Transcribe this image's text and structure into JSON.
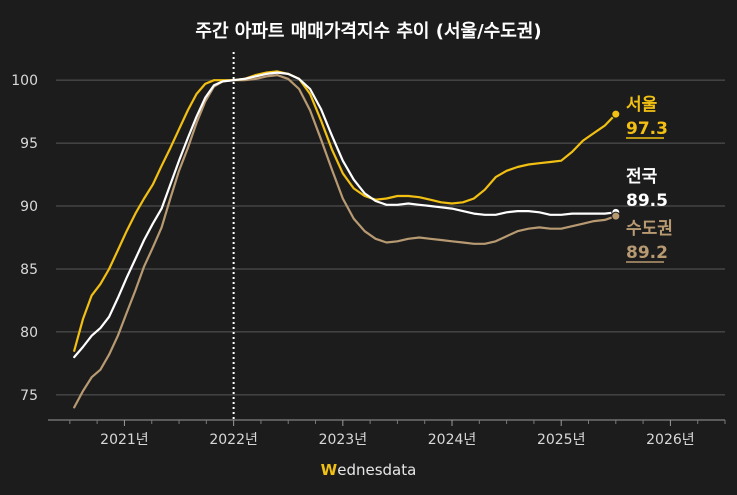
{
  "chart_data": {
    "type": "line",
    "title": "주간 아파트 매매가격지수 추이 (서울/수도권)",
    "y_ticks": [
      75,
      80,
      85,
      90,
      95,
      100
    ],
    "ylim": [
      73,
      102
    ],
    "x_ticks": [
      {
        "label": "2021년",
        "x": 2021.0
      },
      {
        "label": "2022년",
        "x": 2022.0
      },
      {
        "label": "2023년",
        "x": 2023.0
      },
      {
        "label": "2024년",
        "x": 2024.0
      },
      {
        "label": "2025년",
        "x": 2025.0
      },
      {
        "label": "2026년",
        "x": 2026.0
      }
    ],
    "xlim": [
      2020.3,
      2026.5
    ],
    "reference_line": {
      "x": 2022.0,
      "style": "dotted"
    },
    "series": [
      {
        "name": "서울",
        "color": "#f2c012",
        "end_label": "97.3",
        "x": [
          2020.54,
          2020.62,
          2020.7,
          2020.78,
          2020.86,
          2020.94,
          2021.02,
          2021.1,
          2021.18,
          2021.26,
          2021.34,
          2021.42,
          2021.5,
          2021.58,
          2021.66,
          2021.74,
          2021.82,
          2021.9,
          2022.0,
          2022.1,
          2022.2,
          2022.3,
          2022.4,
          2022.5,
          2022.6,
          2022.7,
          2022.8,
          2022.9,
          2023.0,
          2023.1,
          2023.2,
          2023.3,
          2023.4,
          2023.5,
          2023.6,
          2023.7,
          2023.8,
          2023.9,
          2024.0,
          2024.1,
          2024.2,
          2024.3,
          2024.4,
          2024.5,
          2024.6,
          2024.7,
          2024.8,
          2024.9,
          2025.0,
          2025.1,
          2025.2,
          2025.3,
          2025.4,
          2025.5
        ],
        "values": [
          78.5,
          81.0,
          82.9,
          83.8,
          85.0,
          86.5,
          88.0,
          89.4,
          90.6,
          91.7,
          93.2,
          94.6,
          96.1,
          97.6,
          98.9,
          99.7,
          100.0,
          100.0,
          100.0,
          100.1,
          100.4,
          100.6,
          100.7,
          100.5,
          100.1,
          98.9,
          96.8,
          94.5,
          92.6,
          91.4,
          90.8,
          90.5,
          90.6,
          90.8,
          90.8,
          90.7,
          90.5,
          90.3,
          90.2,
          90.3,
          90.6,
          91.3,
          92.3,
          92.8,
          93.1,
          93.3,
          93.4,
          93.5,
          93.6,
          94.3,
          95.2,
          95.8,
          96.4,
          97.3
        ]
      },
      {
        "name": "전국",
        "color": "#ffffff",
        "end_label": "89.5",
        "x": [
          2020.54,
          2020.62,
          2020.7,
          2020.78,
          2020.86,
          2020.94,
          2021.02,
          2021.1,
          2021.18,
          2021.26,
          2021.34,
          2021.42,
          2021.5,
          2021.58,
          2021.66,
          2021.74,
          2021.82,
          2021.9,
          2022.0,
          2022.1,
          2022.2,
          2022.3,
          2022.4,
          2022.5,
          2022.6,
          2022.7,
          2022.8,
          2022.9,
          2023.0,
          2023.1,
          2023.2,
          2023.3,
          2023.4,
          2023.5,
          2023.6,
          2023.7,
          2023.8,
          2023.9,
          2024.0,
          2024.1,
          2024.2,
          2024.3,
          2024.4,
          2024.5,
          2024.6,
          2024.7,
          2024.8,
          2024.9,
          2025.0,
          2025.1,
          2025.2,
          2025.3,
          2025.4,
          2025.5
        ],
        "values": [
          78.0,
          78.8,
          79.7,
          80.3,
          81.2,
          82.7,
          84.3,
          85.8,
          87.3,
          88.6,
          89.8,
          91.7,
          93.6,
          95.4,
          97.1,
          98.6,
          99.6,
          99.9,
          100.0,
          100.1,
          100.3,
          100.5,
          100.6,
          100.5,
          100.1,
          99.3,
          97.7,
          95.6,
          93.6,
          92.1,
          91.0,
          90.4,
          90.1,
          90.1,
          90.2,
          90.1,
          90.0,
          89.9,
          89.8,
          89.6,
          89.4,
          89.3,
          89.3,
          89.5,
          89.6,
          89.6,
          89.5,
          89.3,
          89.3,
          89.4,
          89.4,
          89.4,
          89.4,
          89.5
        ]
      },
      {
        "name": "수도권",
        "color": "#b89a72",
        "end_label": "89.2",
        "x": [
          2020.54,
          2020.62,
          2020.7,
          2020.78,
          2020.86,
          2020.94,
          2021.02,
          2021.1,
          2021.18,
          2021.26,
          2021.34,
          2021.42,
          2021.5,
          2021.58,
          2021.66,
          2021.74,
          2021.82,
          2021.9,
          2022.0,
          2022.1,
          2022.2,
          2022.3,
          2022.4,
          2022.5,
          2022.6,
          2022.7,
          2022.8,
          2022.9,
          2023.0,
          2023.1,
          2023.2,
          2023.3,
          2023.4,
          2023.5,
          2023.6,
          2023.7,
          2023.8,
          2023.9,
          2024.0,
          2024.1,
          2024.2,
          2024.3,
          2024.4,
          2024.5,
          2024.6,
          2024.7,
          2024.8,
          2024.9,
          2025.0,
          2025.1,
          2025.2,
          2025.3,
          2025.4,
          2025.5
        ],
        "values": [
          74.0,
          75.3,
          76.4,
          77.0,
          78.2,
          79.7,
          81.5,
          83.3,
          85.2,
          86.7,
          88.3,
          90.6,
          92.8,
          94.6,
          96.6,
          98.3,
          99.5,
          99.9,
          100.0,
          100.0,
          100.1,
          100.3,
          100.4,
          100.1,
          99.3,
          97.6,
          95.3,
          92.9,
          90.6,
          89.0,
          88.0,
          87.4,
          87.1,
          87.2,
          87.4,
          87.5,
          87.4,
          87.3,
          87.2,
          87.1,
          87.0,
          87.0,
          87.2,
          87.6,
          88.0,
          88.2,
          88.3,
          88.2,
          88.2,
          88.4,
          88.6,
          88.8,
          88.9,
          89.2
        ]
      }
    ]
  },
  "footer": {
    "brand_w": "W",
    "brand_rest": "ednesdata"
  }
}
